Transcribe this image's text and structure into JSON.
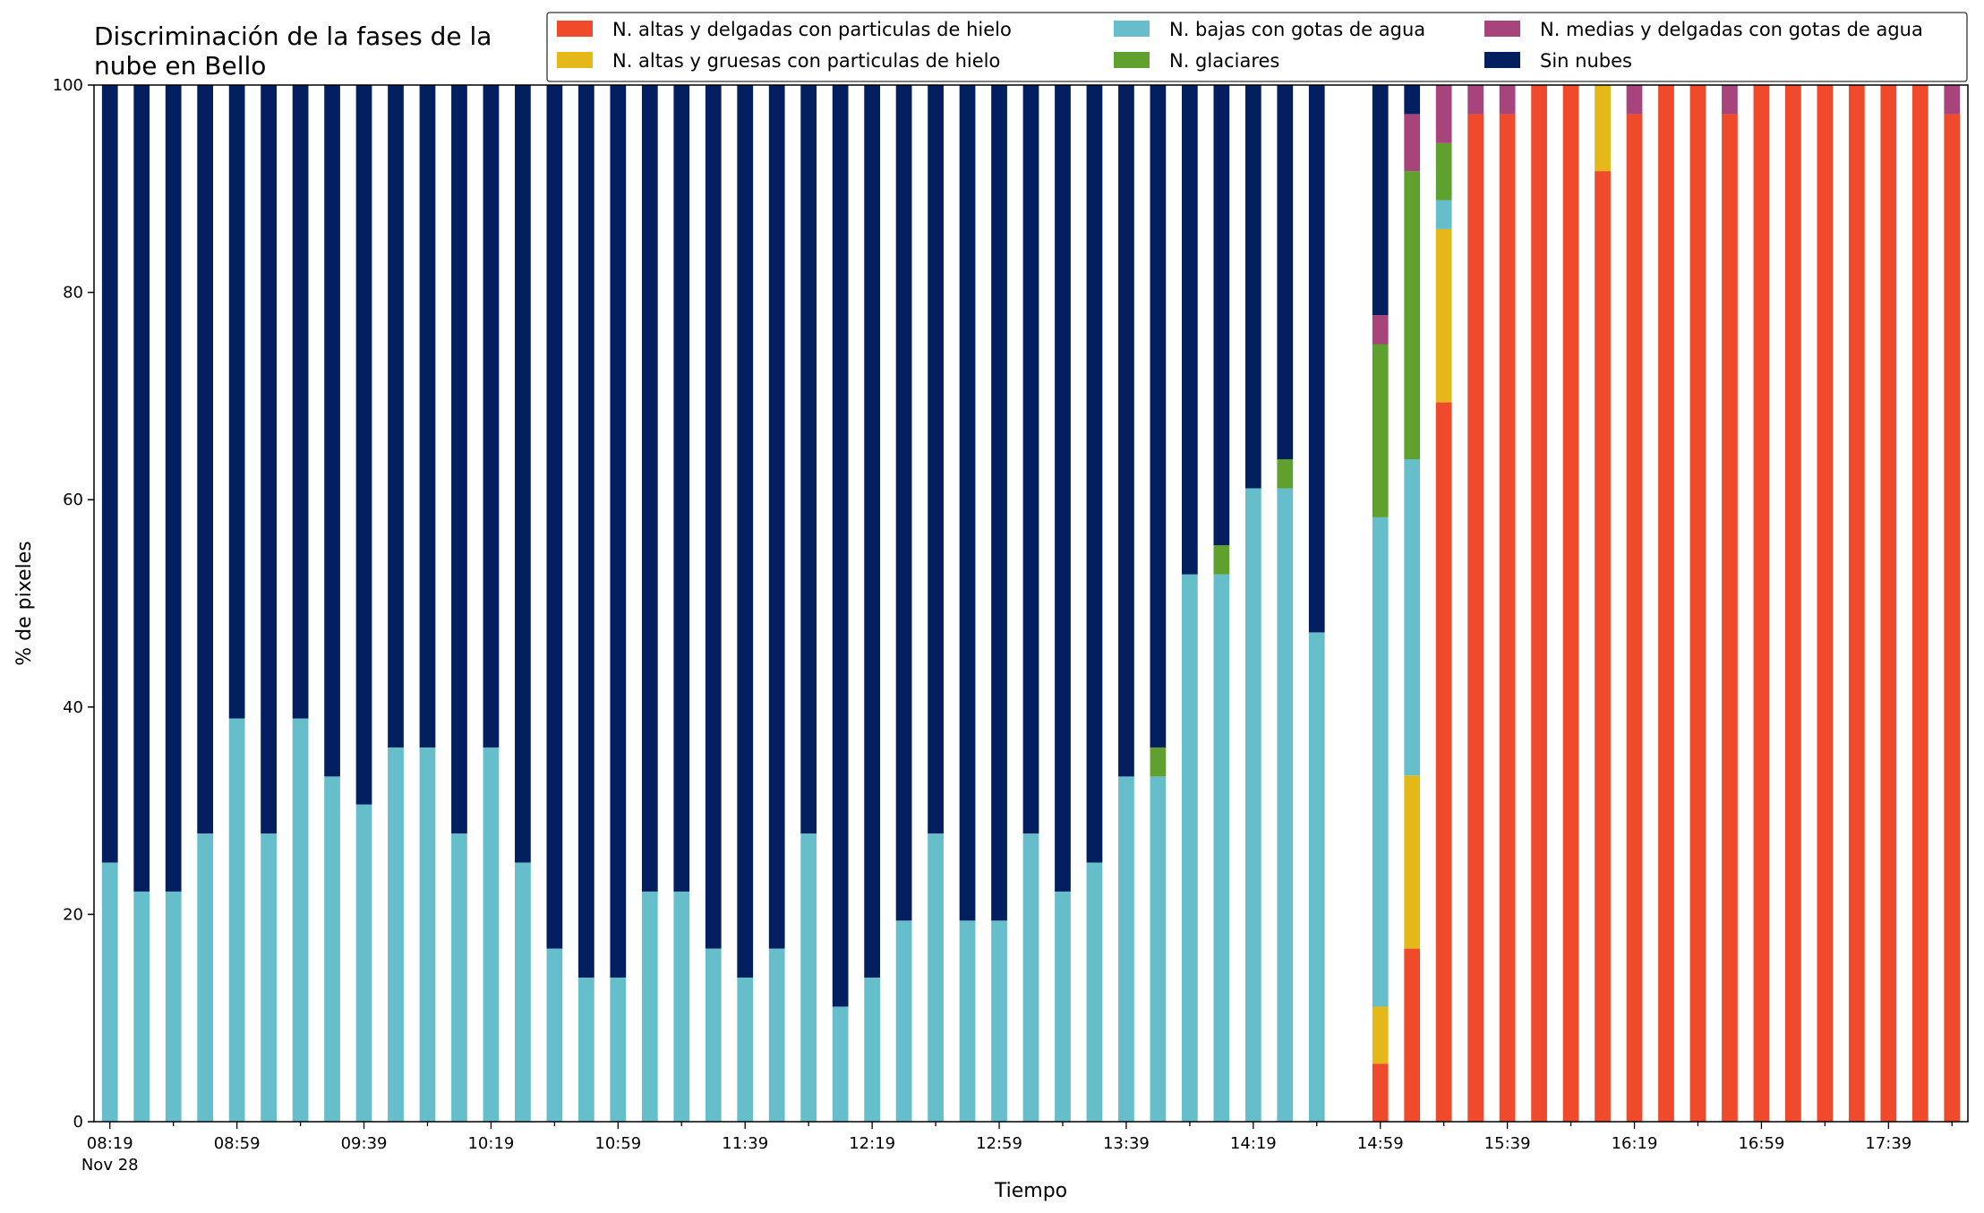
{
  "chart_data": {
    "type": "bar",
    "stacked": true,
    "title_lines": [
      "Discriminación de la fases de la",
      "nube en Bello"
    ],
    "xlabel": "Tiempo",
    "ylabel": "% de pixeles",
    "ylim": [
      0,
      100
    ],
    "yticks": [
      0,
      20,
      40,
      60,
      80,
      100
    ],
    "grid": false,
    "legend_position": "top-right",
    "x_tick_labels": [
      "08:19",
      "08:59",
      "09:39",
      "10:19",
      "10:59",
      "11:39",
      "12:19",
      "12:59",
      "13:39",
      "14:19",
      "14:59",
      "15:39",
      "16:19",
      "16:59",
      "17:39"
    ],
    "x_date_label": "Nov 28",
    "x_label_every": 4,
    "series": [
      {
        "name": "N. altas y delgadas con particulas de hielo",
        "color": "#EE4A2B",
        "values": [
          0,
          0,
          0,
          0,
          0,
          0,
          0,
          0,
          0,
          0,
          0,
          0,
          0,
          0,
          0,
          0,
          0,
          0,
          0,
          0,
          0,
          0,
          0,
          0,
          0,
          0,
          0,
          0,
          0,
          0,
          0,
          0,
          0,
          0,
          0,
          0,
          0,
          0,
          0,
          0,
          5.6,
          16.7,
          69.4,
          97.2,
          97.2,
          100,
          100,
          91.7,
          97.2,
          100,
          100,
          97.2,
          100,
          100,
          100,
          100,
          100,
          100,
          97.2
        ]
      },
      {
        "name": "N. altas y gruesas con particulas de hielo",
        "color": "#E5B819",
        "values": [
          0,
          0,
          0,
          0,
          0,
          0,
          0,
          0,
          0,
          0,
          0,
          0,
          0,
          0,
          0,
          0,
          0,
          0,
          0,
          0,
          0,
          0,
          0,
          0,
          0,
          0,
          0,
          0,
          0,
          0,
          0,
          0,
          0,
          0,
          0,
          0,
          0,
          0,
          0,
          0,
          5.5,
          16.7,
          16.7,
          0,
          0,
          0,
          0,
          8.3,
          0,
          0,
          0,
          0,
          0,
          0,
          0,
          0,
          0,
          0,
          0
        ]
      },
      {
        "name": "N. bajas con gotas de agua",
        "color": "#66BECA",
        "values": [
          25,
          22.2,
          22.2,
          27.8,
          38.9,
          27.8,
          38.9,
          33.3,
          30.6,
          36.1,
          36.1,
          27.8,
          36.1,
          25,
          16.7,
          13.9,
          13.9,
          22.2,
          22.2,
          16.7,
          13.9,
          16.7,
          27.8,
          11.1,
          13.9,
          19.4,
          27.8,
          19.4,
          19.4,
          27.8,
          22.2,
          25,
          33.3,
          33.3,
          52.8,
          52.8,
          61.1,
          61.1,
          47.2,
          0,
          47.2,
          30.5,
          2.8,
          0,
          0,
          0,
          0,
          0,
          0,
          0,
          0,
          0,
          0,
          0,
          0,
          0,
          0,
          0,
          0
        ]
      },
      {
        "name": "N. glaciares",
        "color": "#5FA02E",
        "values": [
          0,
          0,
          0,
          0,
          0,
          0,
          0,
          0,
          0,
          0,
          0,
          0,
          0,
          0,
          0,
          0,
          0,
          0,
          0,
          0,
          0,
          0,
          0,
          0,
          0,
          0,
          0,
          0,
          0,
          0,
          0,
          0,
          0,
          2.8,
          0,
          2.8,
          0,
          2.8,
          0,
          0,
          16.7,
          27.8,
          5.5,
          0,
          0,
          0,
          0,
          0,
          0,
          0,
          0,
          0,
          0,
          0,
          0,
          0,
          0,
          0,
          0
        ]
      },
      {
        "name": "N. medias y delgadas con gotas de agua",
        "color": "#A8447C",
        "values": [
          0,
          0,
          0,
          0,
          0,
          0,
          0,
          0,
          0,
          0,
          0,
          0,
          0,
          0,
          0,
          0,
          0,
          0,
          0,
          0,
          0,
          0,
          0,
          0,
          0,
          0,
          0,
          0,
          0,
          0,
          0,
          0,
          0,
          0,
          0,
          0,
          0,
          0,
          0,
          0,
          2.8,
          5.5,
          5.6,
          2.8,
          2.8,
          0,
          0,
          0,
          2.8,
          0,
          0,
          2.8,
          0,
          0,
          0,
          0,
          0,
          0,
          2.8
        ]
      },
      {
        "name": "Sin nubes",
        "color": "#031F5F",
        "values": [
          75,
          77.8,
          77.8,
          72.2,
          61.1,
          72.2,
          61.1,
          66.7,
          69.4,
          63.9,
          63.9,
          72.2,
          63.9,
          75,
          83.3,
          86.1,
          86.1,
          77.8,
          77.8,
          83.3,
          86.1,
          83.3,
          72.2,
          88.9,
          86.1,
          80.6,
          72.2,
          80.6,
          80.6,
          72.2,
          77.8,
          75,
          66.7,
          63.9,
          47.2,
          44.4,
          38.9,
          36.1,
          52.8,
          0,
          22.2,
          2.8,
          0,
          0,
          0,
          0,
          0,
          0,
          0,
          0,
          0,
          0,
          0,
          0,
          0,
          0,
          0,
          0,
          0
        ]
      }
    ]
  }
}
